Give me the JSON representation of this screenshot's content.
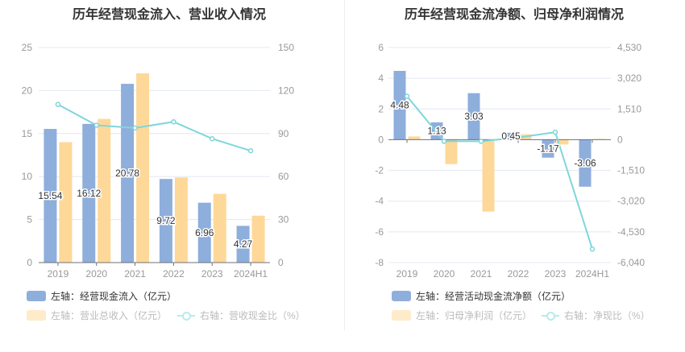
{
  "colors": {
    "inflow": "#8eaedc",
    "revenue": "#fed898",
    "line": "#7fd6db",
    "grid": "#e3e8f3",
    "axis": "#999",
    "text": "#333"
  },
  "chart_data": [
    {
      "type": "bar+line",
      "title": "历年经营现金流入、营业收入情况",
      "categories": [
        "2019",
        "2020",
        "2021",
        "2022",
        "2023",
        "2024H1"
      ],
      "left_axis": {
        "range": [
          0,
          25
        ],
        "ticks": [
          "0",
          "5",
          "10",
          "15",
          "20",
          "25"
        ]
      },
      "right_axis": {
        "range": [
          0,
          150
        ],
        "ticks": [
          "0",
          "30",
          "60",
          "90",
          "120",
          "150"
        ]
      },
      "grid": true,
      "legend_position": "bottom",
      "series": [
        {
          "name": "左轴：经营现金流入（亿元）",
          "type": "bar",
          "axis": "left",
          "values": [
            15.54,
            16.12,
            20.78,
            9.72,
            6.96,
            4.27
          ],
          "labels": [
            "15.54",
            "16.12",
            "20.78",
            "9.72",
            "6.96",
            "4.27"
          ],
          "active": true
        },
        {
          "name": "左轴：营业总收入（亿元）",
          "type": "bar",
          "axis": "left",
          "values": [
            14.0,
            16.7,
            22.0,
            9.9,
            8.0,
            5.45
          ],
          "active": false
        },
        {
          "name": "右轴：营收现金比（%）",
          "type": "line",
          "axis": "right",
          "values": [
            110.3,
            95.8,
            93.9,
            98.2,
            86.4,
            78.0
          ],
          "active": false
        }
      ]
    },
    {
      "type": "bar+line",
      "title": "历年经营现金流净额、归母净利润情况",
      "categories": [
        "2019",
        "2020",
        "2021",
        "2022",
        "2023",
        "2024H1"
      ],
      "left_axis": {
        "range": [
          -8,
          6
        ],
        "ticks": [
          "-8",
          "-6",
          "-4",
          "-2",
          "0",
          "2",
          "4",
          "6"
        ]
      },
      "right_axis": {
        "range": [
          -6040,
          4530
        ],
        "ticks": [
          "-6,040",
          "-4,530",
          "-3,020",
          "-1,510",
          "0",
          "1,510",
          "3,020",
          "4,530"
        ]
      },
      "grid": true,
      "legend_position": "bottom",
      "series": [
        {
          "name": "左轴：经营活动现金流净额（亿元）",
          "type": "bar",
          "axis": "left",
          "values": [
            4.48,
            1.13,
            3.03,
            0.45,
            -1.17,
            -3.06
          ],
          "labels": [
            "4.48",
            "1.13",
            "3.03",
            "0.45",
            "-1.17",
            "-3.06"
          ],
          "active": true
        },
        {
          "name": "左轴：归母净利润（亿元）",
          "type": "bar",
          "axis": "left",
          "values": [
            0.21,
            -1.59,
            -4.68,
            0.35,
            -0.31,
            0.05
          ],
          "active": false
        },
        {
          "name": "右轴：净现比（%）",
          "type": "line",
          "axis": "right",
          "values": [
            2136,
            -79,
            -79,
            106,
            368,
            -5376
          ],
          "active": false
        }
      ]
    }
  ]
}
